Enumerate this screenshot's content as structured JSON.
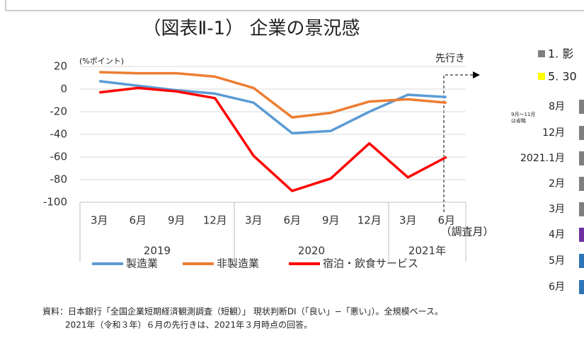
{
  "chart_data": {
    "type": "line",
    "title": "（図表Ⅱ-1） 企業の景況感",
    "y_unit": "(%ポイント)",
    "categories": [
      "3月",
      "6月",
      "9月",
      "12月",
      "3月",
      "6月",
      "9月",
      "12月",
      "3月",
      "6月"
    ],
    "x_groups": [
      "2019",
      "2020",
      "2021年"
    ],
    "x_axis_label": "（調査月）",
    "forecast_label": "先行き",
    "series": [
      {
        "name": "製造業",
        "color": "#5b9bd5",
        "values": [
          7,
          3,
          -1,
          -4,
          -12,
          -39,
          -37,
          -20,
          -5,
          -7
        ]
      },
      {
        "name": "非製造業",
        "color": "#ed7d31",
        "values": [
          15,
          14,
          14,
          11,
          1,
          -25,
          -21,
          -11,
          -9,
          -12
        ]
      },
      {
        "name": "宿泊・飲食サービス",
        "color": "#ff0000",
        "values": [
          -3,
          1,
          -2,
          -8,
          -59,
          -90,
          -79,
          -48,
          -78,
          -60
        ]
      }
    ],
    "ylim": [
      -100,
      20
    ],
    "yticks": [
      -100,
      -80,
      -60,
      -40,
      -20,
      0,
      20
    ],
    "grid": true,
    "source": [
      "資料：日本銀行「全国企業短期経済観測調査（短観）」 現状判断DI（「良い」−「悪い」）。全規模ベース。",
      "2021年（令和３年）６月の先行きは、2021年３月時点の回答。"
    ]
  },
  "right_panel": {
    "legend": [
      "1. 影",
      "5. 30"
    ],
    "note": [
      "9月～11月",
      "は省略"
    ],
    "rows": [
      "8月",
      "12月",
      "2021.1月",
      "2月",
      "3月",
      "4月",
      "5月",
      "6月"
    ]
  }
}
